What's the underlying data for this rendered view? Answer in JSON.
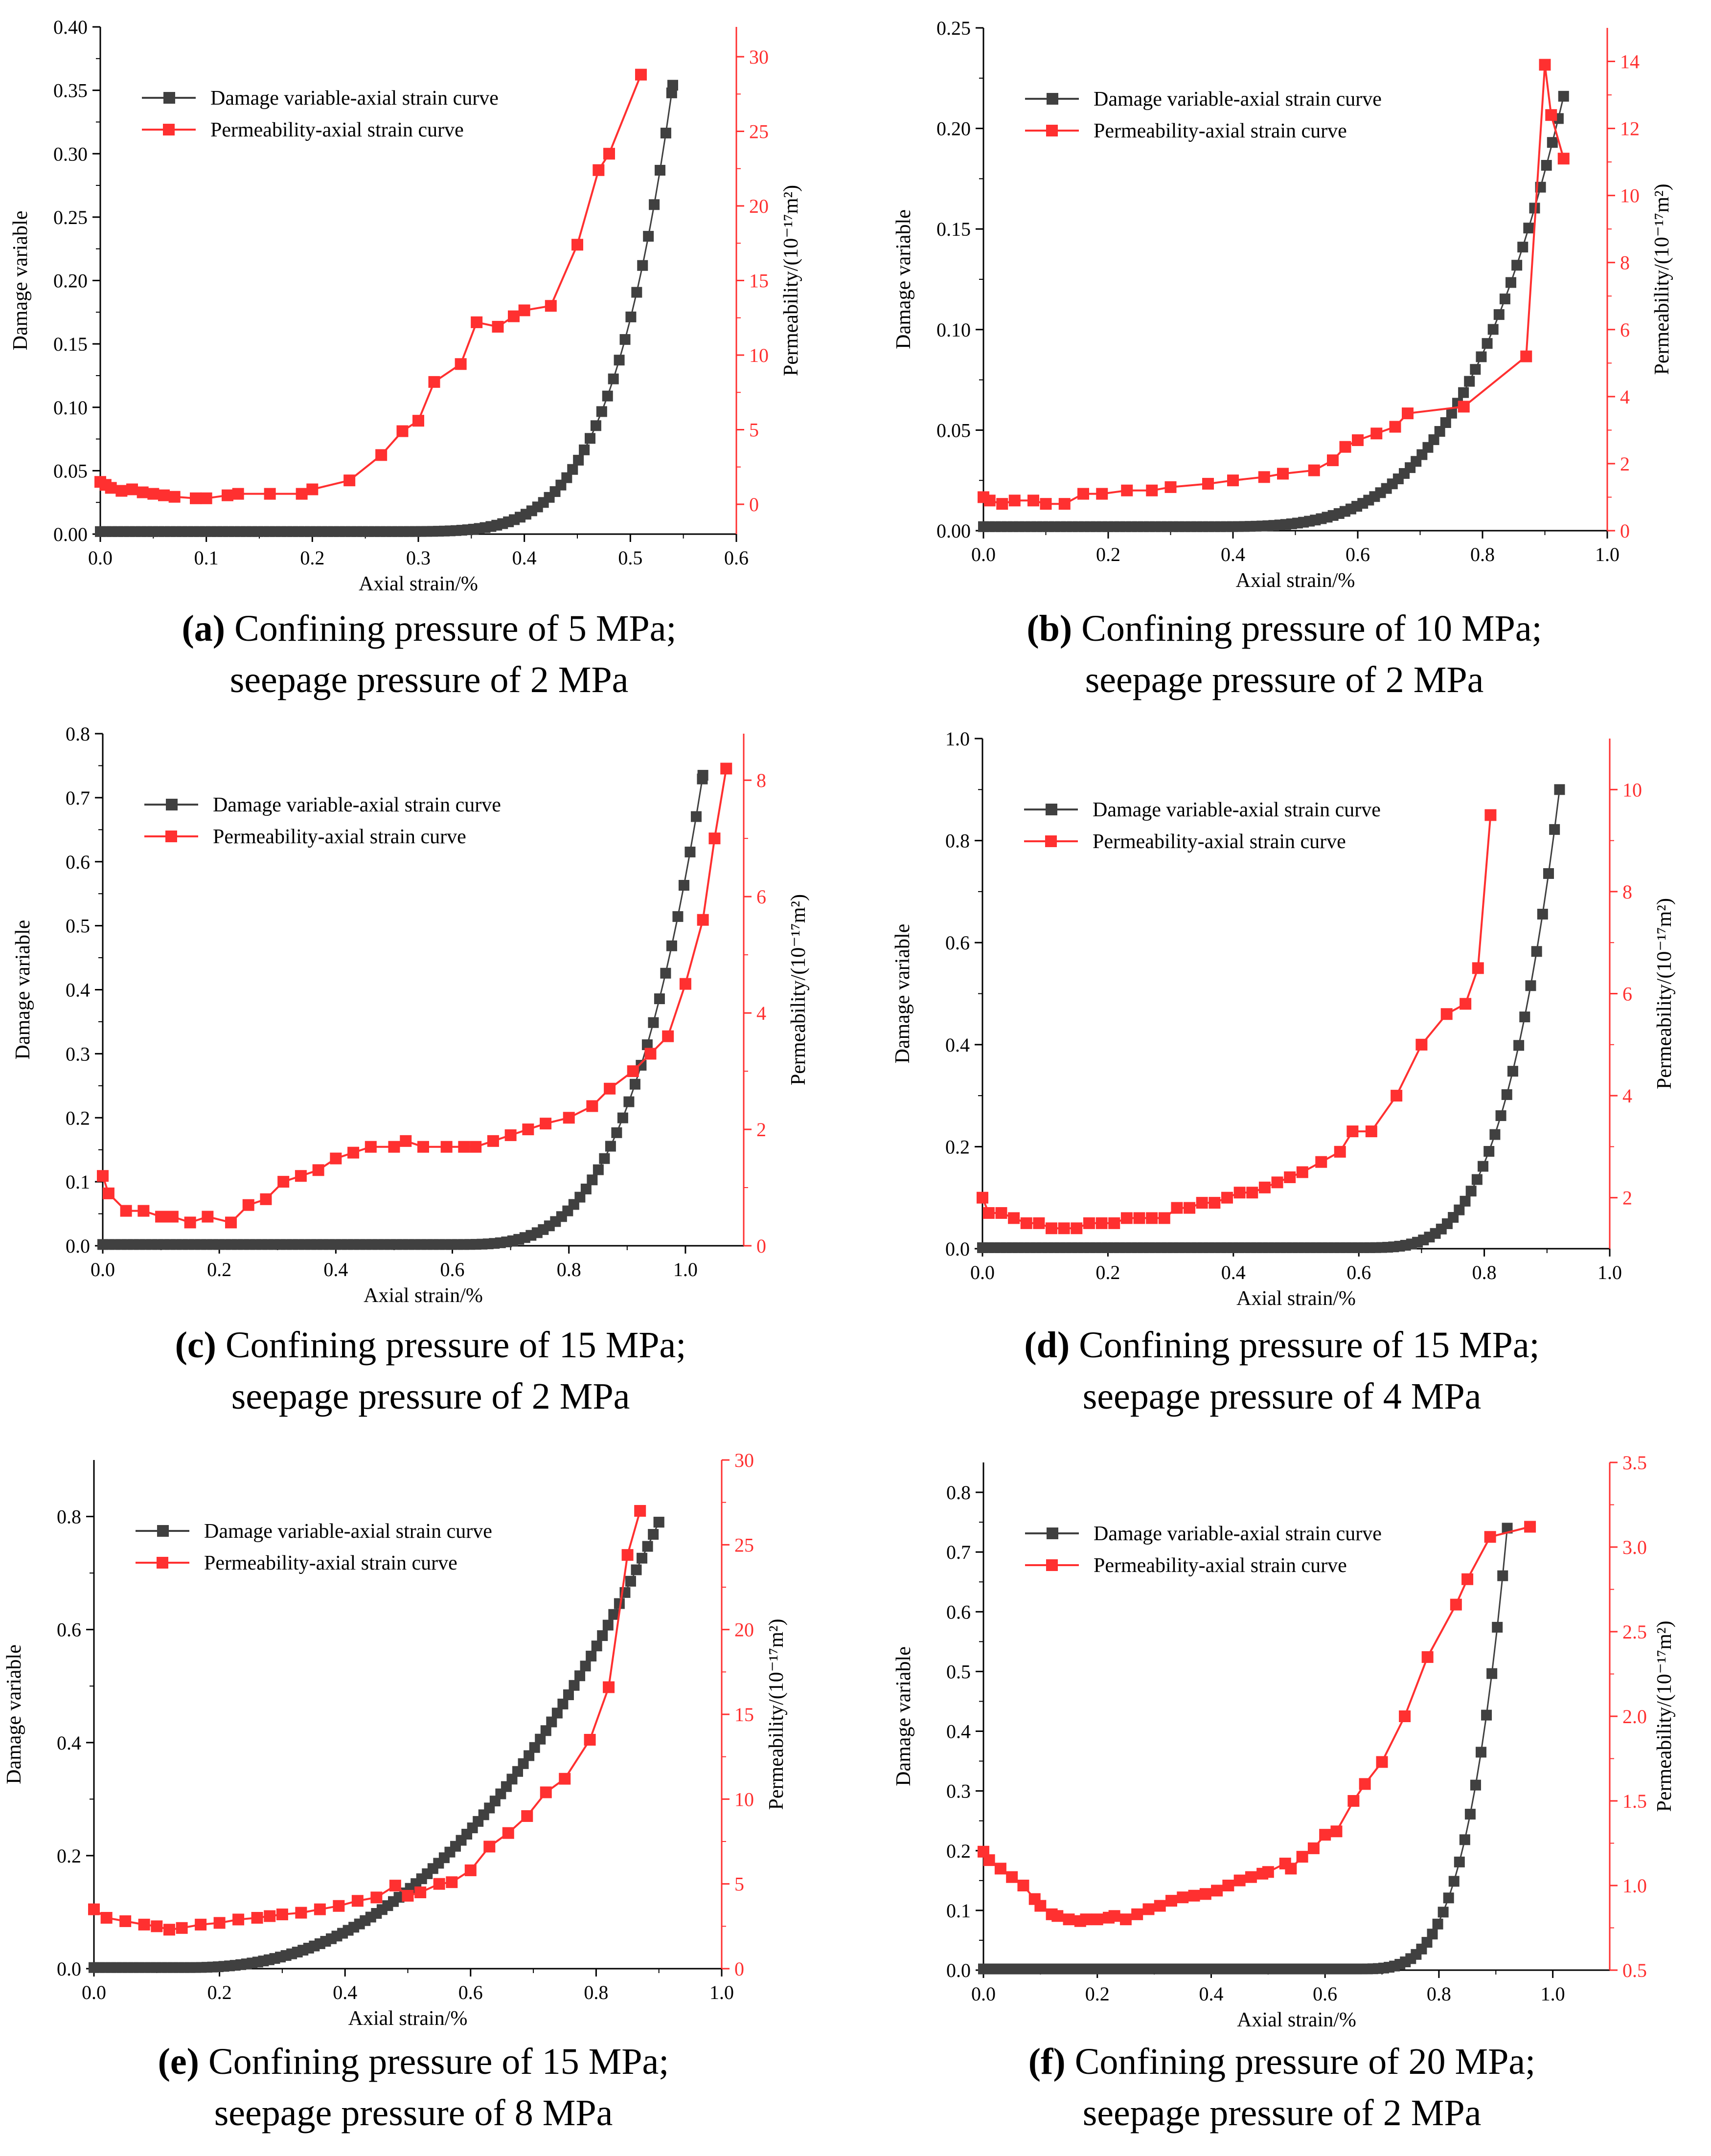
{
  "legend_labels": {
    "damage": "Damage variable-axial strain curve",
    "permeability": "Permeability-axial strain curve"
  },
  "colors": {
    "damage": "#404040",
    "permeability": "#ff3030",
    "axis": "#000000"
  },
  "chart_data": [
    {
      "id": "a",
      "type": "line",
      "caption_label": "(a)",
      "caption_line1": "Confining pressure of 5 MPa;",
      "caption_line2": "seepage pressure of 2 MPa",
      "xlabel": "Axial strain/%",
      "ylabel": "Damage variable",
      "y2label": "Permeability/(10⁻¹⁷m²)",
      "xlim": [
        0,
        0.6
      ],
      "xticks": [
        0,
        0.1,
        0.2,
        0.3,
        0.4,
        0.5,
        0.6
      ],
      "xtick_labels": [
        "0.0",
        "0.1",
        "0.2",
        "0.3",
        "0.4",
        "0.5",
        "0.6"
      ],
      "ylim": [
        0,
        0.4
      ],
      "yticks": [
        0,
        0.05,
        0.1,
        0.15,
        0.2,
        0.25,
        0.3,
        0.35,
        0.4
      ],
      "ytick_labels": [
        "0.00",
        "0.05",
        "0.10",
        "0.15",
        "0.20",
        "0.25",
        "0.30",
        "0.35",
        "0.40"
      ],
      "y2lim": [
        -2,
        32
      ],
      "y2ticks": [
        0,
        5,
        10,
        15,
        20,
        25,
        30
      ],
      "y2tick_labels": [
        "0",
        "5",
        "10",
        "15",
        "20",
        "25",
        "30"
      ],
      "damage": {
        "x_end": 0.54,
        "y_end": 0.354,
        "onset": 0.25,
        "exp": 5,
        "step": 0.0055
      },
      "permeability": {
        "x": [
          0,
          0.005,
          0.01,
          0.02,
          0.03,
          0.04,
          0.05,
          0.06,
          0.07,
          0.09,
          0.1,
          0.12,
          0.13,
          0.16,
          0.19,
          0.2,
          0.235,
          0.265,
          0.285,
          0.3,
          0.315,
          0.34,
          0.355,
          0.375,
          0.39,
          0.4,
          0.425,
          0.45,
          0.47,
          0.48,
          0.51
        ],
        "y": [
          1.5,
          1.3,
          1.1,
          0.9,
          1.0,
          0.8,
          0.7,
          0.6,
          0.5,
          0.4,
          0.4,
          0.6,
          0.7,
          0.7,
          0.7,
          1.0,
          1.6,
          3.3,
          4.9,
          5.6,
          8.2,
          9.4,
          12.2,
          11.9,
          12.6,
          13.0,
          13.3,
          17.4,
          22.4,
          23.5,
          28.8
        ]
      },
      "legend_position": "top-left"
    },
    {
      "id": "b",
      "type": "line",
      "caption_label": "(b)",
      "caption_line1": "Confining pressure of 10 MPa;",
      "caption_line2": "seepage pressure of 2 MPa",
      "xlabel": "Axial strain/%",
      "ylabel": "Damage variable",
      "y2label": "Permeability/(10⁻¹⁷m²)",
      "xlim": [
        0,
        1.0
      ],
      "xticks": [
        0,
        0.2,
        0.4,
        0.6,
        0.8,
        1.0
      ],
      "xtick_labels": [
        "0.0",
        "0.2",
        "0.4",
        "0.6",
        "0.8",
        "1.0"
      ],
      "ylim": [
        0,
        0.25
      ],
      "yticks": [
        0,
        0.05,
        0.1,
        0.15,
        0.2,
        0.25
      ],
      "ytick_labels": [
        "0.00",
        "0.05",
        "0.10",
        "0.15",
        "0.20",
        "0.25"
      ],
      "y2lim": [
        0,
        15
      ],
      "y2ticks": [
        0,
        2,
        4,
        6,
        8,
        10,
        12,
        14
      ],
      "y2tick_labels": [
        "0",
        "2",
        "4",
        "6",
        "8",
        "10",
        "12",
        "14"
      ],
      "damage": {
        "x_end": 0.93,
        "y_end": 0.216,
        "onset": 0.35,
        "exp": 3.6,
        "step": 0.0095
      },
      "permeability": {
        "x": [
          0,
          0.01,
          0.03,
          0.05,
          0.08,
          0.1,
          0.13,
          0.16,
          0.19,
          0.23,
          0.27,
          0.3,
          0.36,
          0.4,
          0.45,
          0.48,
          0.53,
          0.56,
          0.58,
          0.6,
          0.63,
          0.66,
          0.68,
          0.77,
          0.87,
          0.9,
          0.91,
          0.93
        ],
        "y": [
          1.0,
          0.9,
          0.8,
          0.9,
          0.9,
          0.8,
          0.8,
          1.1,
          1.1,
          1.2,
          1.2,
          1.3,
          1.4,
          1.5,
          1.6,
          1.7,
          1.8,
          2.1,
          2.5,
          2.7,
          2.9,
          3.1,
          3.5,
          3.7,
          5.2,
          13.9,
          12.4,
          11.1
        ]
      },
      "legend_position": "top-left"
    },
    {
      "id": "c",
      "type": "line",
      "caption_label": "(c)",
      "caption_line1": "Confining pressure of 15 MPa;",
      "caption_line2": "seepage pressure of 2 MPa",
      "xlabel": "Axial strain/%",
      "ylabel": "Damage variable",
      "y2label": "Permeability/(10⁻¹⁷m²)",
      "xlim": [
        0,
        1.1
      ],
      "xticks": [
        0,
        0.2,
        0.4,
        0.6,
        0.8,
        1.0
      ],
      "xtick_labels": [
        "0.0",
        "0.2",
        "0.4",
        "0.6",
        "0.8",
        "1.0"
      ],
      "ylim": [
        0,
        0.8
      ],
      "yticks": [
        0,
        0.1,
        0.2,
        0.3,
        0.4,
        0.5,
        0.6,
        0.7,
        0.8
      ],
      "ytick_labels": [
        "0.0",
        "0.1",
        "0.2",
        "0.3",
        "0.4",
        "0.5",
        "0.6",
        "0.7",
        "0.8"
      ],
      "y2lim": [
        0,
        8.8
      ],
      "y2ticks": [
        0,
        2,
        4,
        6,
        8
      ],
      "y2tick_labels": [
        "0",
        "2",
        "4",
        "6",
        "8"
      ],
      "damage": {
        "x_end": 1.03,
        "y_end": 0.735,
        "onset": 0.6,
        "exp": 3.4,
        "step": 0.0105
      },
      "permeability": {
        "x": [
          0,
          0.01,
          0.04,
          0.07,
          0.1,
          0.12,
          0.15,
          0.18,
          0.22,
          0.25,
          0.28,
          0.31,
          0.34,
          0.37,
          0.4,
          0.43,
          0.46,
          0.5,
          0.52,
          0.55,
          0.59,
          0.62,
          0.64,
          0.67,
          0.7,
          0.73,
          0.76,
          0.8,
          0.84,
          0.87,
          0.91,
          0.94,
          0.97,
          1.0,
          1.03,
          1.05,
          1.07
        ],
        "y": [
          1.2,
          0.9,
          0.6,
          0.6,
          0.5,
          0.5,
          0.4,
          0.5,
          0.4,
          0.7,
          0.8,
          1.1,
          1.2,
          1.3,
          1.5,
          1.6,
          1.7,
          1.7,
          1.8,
          1.7,
          1.7,
          1.7,
          1.7,
          1.8,
          1.9,
          2.0,
          2.1,
          2.2,
          2.4,
          2.7,
          3.0,
          3.3,
          3.6,
          4.5,
          5.6,
          7.0,
          8.2
        ]
      },
      "legend_position": "top-left"
    },
    {
      "id": "d",
      "type": "line",
      "caption_label": "(d)",
      "caption_line1": "Confining pressure of 15 MPa;",
      "caption_line2": "seepage pressure of 4 MPa",
      "xlabel": "Axial strain/%",
      "ylabel": "Damage variable",
      "y2label": "Permeability/(10⁻¹⁷m²)",
      "xlim": [
        0,
        1.0
      ],
      "xticks": [
        0,
        0.2,
        0.4,
        0.6,
        0.8,
        1.0
      ],
      "xtick_labels": [
        "0.0",
        "0.2",
        "0.4",
        "0.6",
        "0.8",
        "1.0"
      ],
      "ylim": [
        0,
        1.0
      ],
      "yticks": [
        0,
        0.2,
        0.4,
        0.6,
        0.8,
        1.0
      ],
      "ytick_labels": [
        "0.0",
        "0.2",
        "0.4",
        "0.6",
        "0.8",
        "1.0"
      ],
      "y2lim": [
        1,
        11
      ],
      "y2ticks": [
        2,
        4,
        6,
        8,
        10
      ],
      "y2tick_labels": [
        "2",
        "4",
        "6",
        "8",
        "10"
      ],
      "damage": {
        "x_end": 0.92,
        "y_end": 0.9,
        "onset": 0.6,
        "exp": 3.6,
        "step": 0.0095
      },
      "permeability": {
        "x": [
          0,
          0.01,
          0.03,
          0.05,
          0.07,
          0.09,
          0.11,
          0.13,
          0.15,
          0.17,
          0.19,
          0.21,
          0.23,
          0.25,
          0.27,
          0.29,
          0.31,
          0.33,
          0.35,
          0.37,
          0.39,
          0.41,
          0.43,
          0.45,
          0.47,
          0.49,
          0.51,
          0.54,
          0.57,
          0.59,
          0.62,
          0.66,
          0.7,
          0.74,
          0.77,
          0.79,
          0.81
        ],
        "y": [
          2.0,
          1.7,
          1.7,
          1.6,
          1.5,
          1.5,
          1.4,
          1.4,
          1.4,
          1.5,
          1.5,
          1.5,
          1.6,
          1.6,
          1.6,
          1.6,
          1.8,
          1.8,
          1.9,
          1.9,
          2.0,
          2.1,
          2.1,
          2.2,
          2.3,
          2.4,
          2.5,
          2.7,
          2.9,
          3.3,
          3.3,
          4.0,
          5.0,
          5.6,
          5.8,
          6.5,
          9.5
        ]
      },
      "legend_position": "top-left"
    },
    {
      "id": "e",
      "type": "line",
      "caption_label": "(e)",
      "caption_line1": "Confining pressure of 15 MPa;",
      "caption_line2": "seepage pressure of 8 MPa",
      "xlabel": "Axial strain/%",
      "ylabel": "Damage variable",
      "y2label": "Permeability/(10⁻¹⁷m²)",
      "xlim": [
        0,
        1.0
      ],
      "xticks": [
        0,
        0.2,
        0.4,
        0.6,
        0.8,
        1.0
      ],
      "xtick_labels": [
        "0.0",
        "0.2",
        "0.4",
        "0.6",
        "0.8",
        "1.0"
      ],
      "ylim": [
        0,
        0.9
      ],
      "yticks": [
        0,
        0.2,
        0.4,
        0.6,
        0.8
      ],
      "ytick_labels": [
        "0.0",
        "0.2",
        "0.4",
        "0.6",
        "0.8"
      ],
      "y2lim": [
        0,
        30
      ],
      "y2ticks": [
        0,
        5,
        10,
        15,
        20,
        25,
        30
      ],
      "y2tick_labels": [
        "0",
        "5",
        "10",
        "15",
        "20",
        "25",
        "30"
      ],
      "damage": {
        "x_end": 0.9,
        "y_end": 0.79,
        "onset": 0.15,
        "exp": 2.3,
        "step": 0.009
      },
      "permeability": {
        "x": [
          0,
          0.02,
          0.05,
          0.08,
          0.1,
          0.12,
          0.14,
          0.17,
          0.2,
          0.23,
          0.26,
          0.28,
          0.3,
          0.33,
          0.36,
          0.39,
          0.42,
          0.45,
          0.48,
          0.5,
          0.52,
          0.55,
          0.57,
          0.6,
          0.63,
          0.66,
          0.69,
          0.72,
          0.75,
          0.79,
          0.82,
          0.85,
          0.87
        ],
        "y": [
          3.5,
          3.0,
          2.8,
          2.6,
          2.5,
          2.3,
          2.4,
          2.6,
          2.7,
          2.9,
          3.0,
          3.1,
          3.2,
          3.3,
          3.5,
          3.7,
          4.0,
          4.2,
          4.9,
          4.3,
          4.5,
          5.0,
          5.1,
          5.8,
          7.2,
          8.0,
          9.0,
          10.4,
          11.2,
          13.5,
          16.6,
          24.4,
          27.0
        ]
      },
      "legend_position": "top-left"
    },
    {
      "id": "f",
      "type": "line",
      "caption_label": "(f)",
      "caption_line1": "Confining pressure of 20 MPa;",
      "caption_line2": "seepage pressure of 2 MPa",
      "xlabel": "Axial strain/%",
      "ylabel": "Damage variable",
      "y2label": "Permeability/(10⁻¹⁷m²)",
      "xlim": [
        0,
        1.1
      ],
      "xticks": [
        0,
        0.2,
        0.4,
        0.6,
        0.8,
        1.0
      ],
      "xtick_labels": [
        "0.0",
        "0.2",
        "0.4",
        "0.6",
        "0.8",
        "1.0"
      ],
      "ylim": [
        0,
        0.85
      ],
      "yticks": [
        0,
        0.1,
        0.2,
        0.3,
        0.4,
        0.5,
        0.6,
        0.7,
        0.8
      ],
      "ytick_labels": [
        "0.0",
        "0.1",
        "0.2",
        "0.3",
        "0.4",
        "0.5",
        "0.6",
        "0.7",
        "0.8"
      ],
      "y2lim": [
        0.5,
        3.5
      ],
      "y2ticks": [
        0.5,
        1.0,
        1.5,
        2.0,
        2.5,
        3.0,
        3.5
      ],
      "y2tick_labels": [
        "0.5",
        "1.0",
        "1.5",
        "2.0",
        "2.5",
        "3.0",
        "3.5"
      ],
      "damage": {
        "x_end": 0.92,
        "y_end": 0.74,
        "onset": 0.65,
        "exp": 3.8,
        "step": 0.0095
      },
      "permeability": {
        "x": [
          0,
          0.01,
          0.03,
          0.05,
          0.07,
          0.09,
          0.1,
          0.12,
          0.13,
          0.15,
          0.17,
          0.18,
          0.2,
          0.22,
          0.23,
          0.25,
          0.27,
          0.29,
          0.31,
          0.33,
          0.35,
          0.37,
          0.39,
          0.41,
          0.43,
          0.45,
          0.47,
          0.49,
          0.5,
          0.53,
          0.54,
          0.56,
          0.58,
          0.6,
          0.62,
          0.65,
          0.67,
          0.7,
          0.74,
          0.78,
          0.83,
          0.85,
          0.89,
          0.96
        ],
        "y": [
          1.2,
          1.15,
          1.1,
          1.05,
          1.0,
          0.92,
          0.88,
          0.83,
          0.82,
          0.8,
          0.79,
          0.8,
          0.8,
          0.81,
          0.82,
          0.8,
          0.83,
          0.86,
          0.88,
          0.91,
          0.93,
          0.94,
          0.95,
          0.97,
          1.0,
          1.03,
          1.05,
          1.07,
          1.08,
          1.13,
          1.1,
          1.17,
          1.22,
          1.3,
          1.32,
          1.5,
          1.6,
          1.73,
          2.0,
          2.35,
          2.66,
          2.81,
          3.06,
          3.12
        ]
      },
      "legend_position": "top-left"
    }
  ]
}
